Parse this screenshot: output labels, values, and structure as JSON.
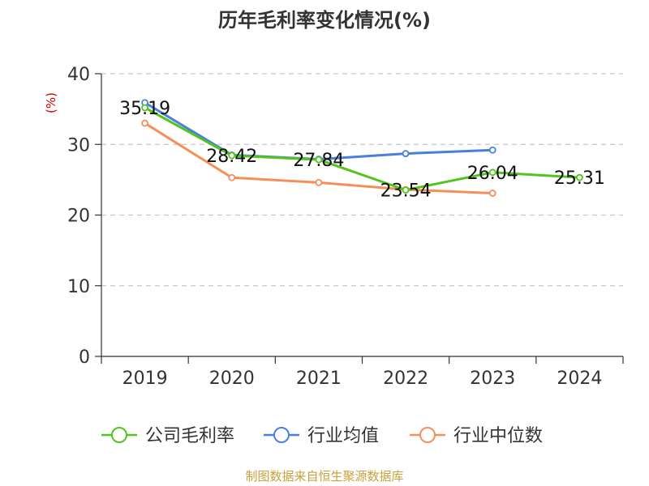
{
  "chart_data": {
    "type": "line",
    "title": "历年毛利率变化情况(%)",
    "ylabel": "(%)",
    "categories": [
      "2019",
      "2020",
      "2021",
      "2022",
      "2023",
      "2024"
    ],
    "ylim": [
      0,
      40
    ],
    "yticks": [
      0,
      10,
      20,
      30,
      40
    ],
    "grid": true,
    "legend_position": "bottom",
    "series": [
      {
        "name": "公司毛利率",
        "color": "#52c41a",
        "values": [
          35.19,
          28.42,
          27.84,
          23.54,
          26.04,
          25.31
        ],
        "labels": [
          "35.19",
          "28.42",
          "27.84",
          "23.54",
          "26.04",
          "25.31"
        ]
      },
      {
        "name": "行业均值",
        "color": "#4a7fdb",
        "values": [
          35.9,
          28.5,
          27.9,
          28.7,
          29.2,
          null
        ],
        "labels": []
      },
      {
        "name": "行业中位数",
        "color": "#f58f5a",
        "values": [
          33.0,
          25.3,
          24.6,
          23.6,
          23.1,
          null
        ],
        "labels": []
      }
    ],
    "source": "制图数据来自恒生聚源数据库"
  }
}
